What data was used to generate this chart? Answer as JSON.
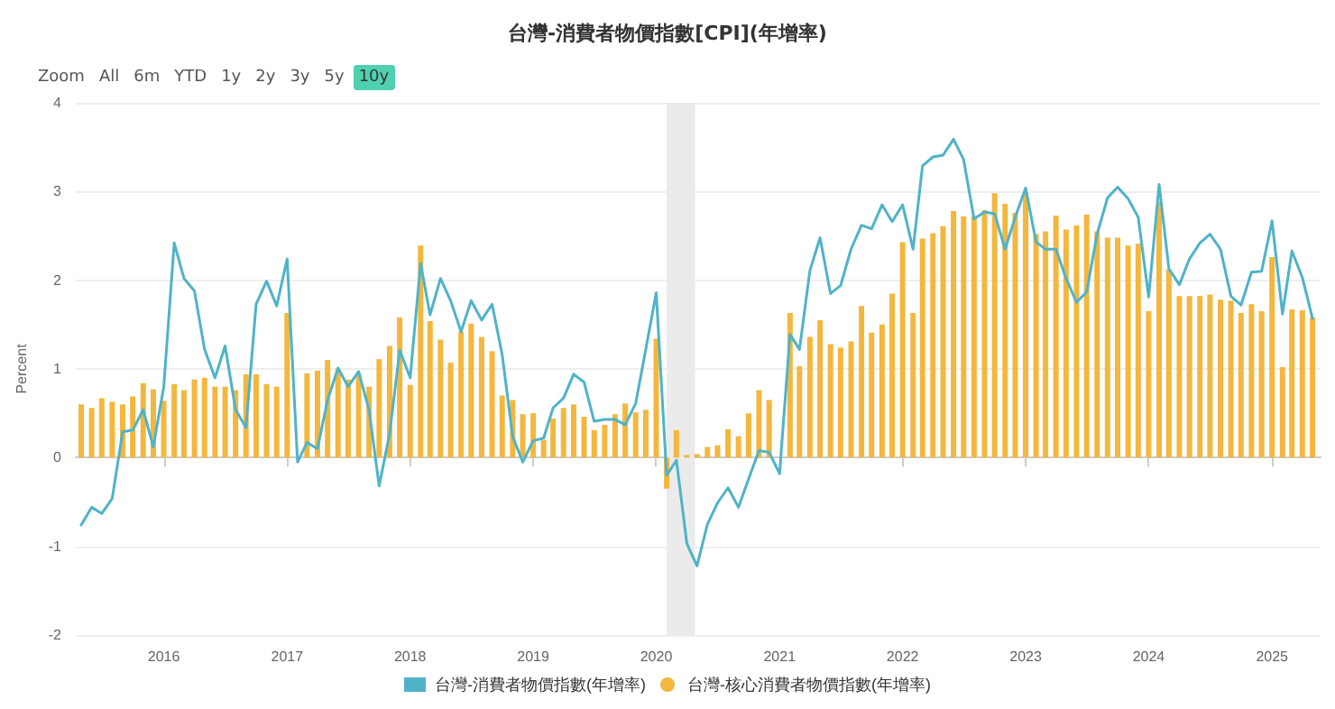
{
  "chart_data": {
    "type": "bar",
    "title": "台灣-消費者物價指數[CPI](年增率)",
    "ylabel": "Percent",
    "annotations": [
      "Zoom",
      "All",
      "6m",
      "YTD",
      "1y",
      "2y",
      "3y",
      "5y",
      "10y"
    ],
    "x": [
      "2015-05",
      "2015-06",
      "2015-07",
      "2015-08",
      "2015-09",
      "2015-10",
      "2015-11",
      "2015-12",
      "2016-01",
      "2016-02",
      "2016-03",
      "2016-04",
      "2016-05",
      "2016-06",
      "2016-07",
      "2016-08",
      "2016-09",
      "2016-10",
      "2016-11",
      "2016-12",
      "2017-01",
      "2017-02",
      "2017-03",
      "2017-04",
      "2017-05",
      "2017-06",
      "2017-07",
      "2017-08",
      "2017-09",
      "2017-10",
      "2017-11",
      "2017-12",
      "2018-01",
      "2018-02",
      "2018-03",
      "2018-04",
      "2018-05",
      "2018-06",
      "2018-07",
      "2018-08",
      "2018-09",
      "2018-10",
      "2018-11",
      "2018-12",
      "2019-01",
      "2019-02",
      "2019-03",
      "2019-04",
      "2019-05",
      "2019-06",
      "2019-07",
      "2019-08",
      "2019-09",
      "2019-10",
      "2019-11",
      "2019-12",
      "2020-01",
      "2020-02",
      "2020-03",
      "2020-04",
      "2020-05",
      "2020-06",
      "2020-07",
      "2020-08",
      "2020-09",
      "2020-10",
      "2020-11",
      "2020-12",
      "2021-01",
      "2021-02",
      "2021-03",
      "2021-04",
      "2021-05",
      "2021-06",
      "2021-07",
      "2021-08",
      "2021-09",
      "2021-10",
      "2021-11",
      "2021-12",
      "2022-01",
      "2022-02",
      "2022-03",
      "2022-04",
      "2022-05",
      "2022-06",
      "2022-07",
      "2022-08",
      "2022-09",
      "2022-10",
      "2022-11",
      "2022-12",
      "2023-01",
      "2023-02",
      "2023-03",
      "2023-04",
      "2023-05",
      "2023-06",
      "2023-07",
      "2023-08",
      "2023-09",
      "2023-10",
      "2023-11",
      "2023-12",
      "2024-01",
      "2024-02",
      "2024-03",
      "2024-04",
      "2024-05",
      "2024-06",
      "2024-07",
      "2024-08",
      "2024-09",
      "2024-10",
      "2024-11",
      "2024-12",
      "2025-01",
      "2025-02",
      "2025-03",
      "2025-04",
      "2025-05"
    ],
    "series": [
      {
        "name": "台灣-消費者物價指數(年增率)",
        "type": "line",
        "color": "#4fb3c8",
        "values": [
          -0.76,
          -0.56,
          -0.63,
          -0.46,
          0.29,
          0.31,
          0.54,
          0.12,
          0.8,
          2.42,
          2.02,
          1.88,
          1.22,
          0.9,
          1.26,
          0.54,
          0.34,
          1.73,
          1.99,
          1.71,
          2.24,
          -0.05,
          0.17,
          0.1,
          0.65,
          1.01,
          0.8,
          0.97,
          0.54,
          -0.32,
          0.27,
          1.21,
          0.9,
          2.19,
          1.61,
          2.02,
          1.77,
          1.42,
          1.77,
          1.55,
          1.73,
          1.16,
          0.24,
          -0.05,
          0.19,
          0.22,
          0.56,
          0.67,
          0.94,
          0.85,
          0.41,
          0.43,
          0.43,
          0.37,
          0.61,
          1.22,
          1.86,
          -0.2,
          -0.03,
          -0.97,
          -1.22,
          -0.75,
          -0.51,
          -0.34,
          -0.56,
          -0.24,
          0.08,
          0.06,
          -0.18,
          1.39,
          1.22,
          2.11,
          2.48,
          1.85,
          1.94,
          2.35,
          2.62,
          2.58,
          2.85,
          2.66,
          2.85,
          2.35,
          3.29,
          3.39,
          3.41,
          3.59,
          3.36,
          2.69,
          2.77,
          2.75,
          2.35,
          2.71,
          3.04,
          2.43,
          2.35,
          2.35,
          2.02,
          1.75,
          1.87,
          2.52,
          2.93,
          3.05,
          2.92,
          2.71,
          1.81,
          3.08,
          2.13,
          1.95,
          2.24,
          2.42,
          2.52,
          2.35,
          1.82,
          1.72,
          2.09,
          2.1,
          2.67,
          1.62,
          2.33,
          2.03,
          1.57
        ]
      },
      {
        "name": "台灣-核心消費者物價指數(年增率)",
        "color": "#f3b73e",
        "values": [
          0.6,
          0.56,
          0.67,
          0.63,
          0.6,
          0.69,
          0.84,
          0.77,
          0.64,
          0.83,
          0.76,
          0.88,
          0.9,
          0.8,
          0.8,
          0.76,
          0.94,
          0.94,
          0.83,
          0.8,
          1.63,
          null,
          0.95,
          0.98,
          1.1,
          1.0,
          0.88,
          0.95,
          0.8,
          1.11,
          1.26,
          1.58,
          0.82,
          2.39,
          1.54,
          1.33,
          1.07,
          1.42,
          1.51,
          1.36,
          1.2,
          0.7,
          0.65,
          0.49,
          0.5,
          0.2,
          0.44,
          0.56,
          0.6,
          0.46,
          0.31,
          0.37,
          0.49,
          0.61,
          0.51,
          0.54,
          1.34,
          -0.35,
          0.31,
          0.03,
          0.04,
          0.12,
          0.14,
          0.32,
          0.24,
          0.5,
          0.76,
          0.65,
          null,
          1.63,
          1.03,
          1.36,
          1.55,
          1.28,
          1.24,
          1.31,
          1.71,
          1.41,
          1.5,
          1.85,
          2.43,
          1.63,
          2.47,
          2.53,
          2.61,
          2.78,
          2.72,
          2.72,
          2.79,
          2.98,
          2.86,
          2.76,
          2.99,
          2.52,
          2.55,
          2.73,
          2.57,
          2.62,
          2.74,
          2.55,
          2.48,
          2.48,
          2.39,
          2.41,
          1.65,
          2.89,
          2.12,
          1.82,
          1.82,
          1.82,
          1.84,
          1.78,
          1.77,
          1.63,
          1.73,
          1.65,
          2.26,
          1.02,
          1.67,
          1.66,
          1.58
        ]
      }
    ],
    "xlim": [
      "2015-04-15",
      "2025-05-25"
    ],
    "xticks": [
      "2016",
      "2017",
      "2018",
      "2019",
      "2020",
      "2021",
      "2022",
      "2023",
      "2024",
      "2025"
    ],
    "ylim": [
      -2,
      4
    ],
    "yticks": [
      -2,
      -1,
      0,
      1,
      2,
      3,
      4
    ],
    "bands": [
      {
        "axis": "x",
        "from": "2020-02-01",
        "to": "2020-04-25",
        "color": "#ebebeb"
      }
    ],
    "grid": "y",
    "legend": "bottom"
  }
}
